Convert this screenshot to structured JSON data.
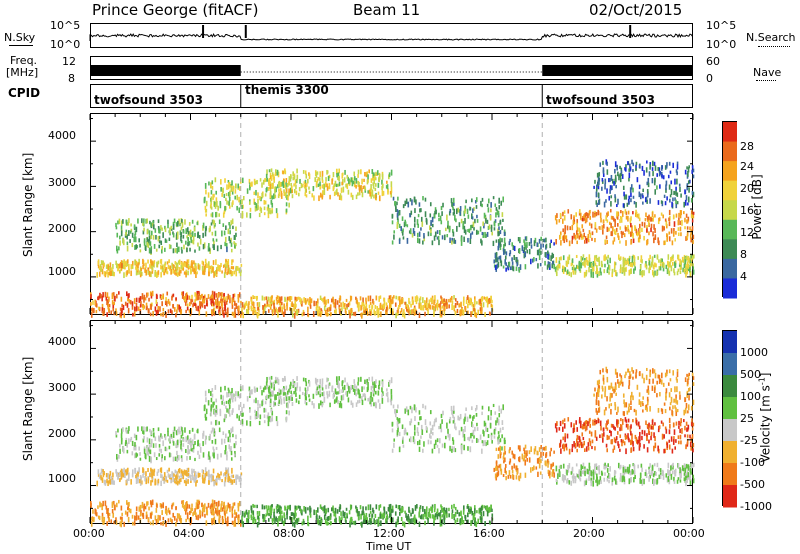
{
  "header": {
    "station": "Prince George (fitACF)",
    "beam": "Beam 11",
    "date": "02/Oct/2015"
  },
  "strips": {
    "nsky_label": "N.Sky",
    "nsky_ticks": [
      "10^5",
      "10^0"
    ],
    "nsearch_label": "N.Search",
    "nsearch_ticks": [
      "10^5",
      "10^0"
    ],
    "freq_label_1": "Freq.",
    "freq_label_2": "[MHz]",
    "freq_ticks": [
      "12",
      "8"
    ],
    "nave_label": "Nave",
    "nave_ticks": [
      "60",
      "0"
    ],
    "cpid_label": "CPID",
    "cpid_segments": [
      {
        "name": "twofsound 3503",
        "start_hour": 0
      },
      {
        "name": "themis 3300",
        "start_hour": 6
      },
      {
        "name": "twofsound 3503",
        "start_hour": 18
      }
    ]
  },
  "panels": {
    "ylabel": "Slant Range [km]",
    "yticks": [
      "4000",
      "3000",
      "2000",
      "1000"
    ],
    "xlabel": "Time UT",
    "xticks": [
      "00:00",
      "04:00",
      "08:00",
      "12:00",
      "16:00",
      "20:00",
      "00:00"
    ],
    "power_label": "Power [dB]",
    "power_ticks": [
      "28",
      "24",
      "20",
      "16",
      "12",
      "8",
      "4"
    ],
    "velocity_label": "Velocity [m s",
    "velocity_label_sup": "-1",
    "velocity_label_end": "]",
    "velocity_ticks": [
      "1000",
      "500",
      "100",
      "25",
      "-25",
      "-100",
      "-500",
      "-1000"
    ]
  },
  "colors": {
    "power_scale": [
      "#1a2cd8",
      "#3a68a0",
      "#3d8a55",
      "#58b858",
      "#c6d84a",
      "#f0d23a",
      "#f5a31e",
      "#ea6a1c",
      "#df2a15"
    ],
    "velocity_scale": [
      "#1532b0",
      "#3a6ea8",
      "#3b8a3e",
      "#60c040",
      "#c8c8c8",
      "#f0b030",
      "#f07a1a",
      "#e02818"
    ]
  },
  "chart_data": {
    "type": "heatmap",
    "x_range_hours": [
      0,
      24
    ],
    "y_range_km": [
      180,
      4600
    ],
    "mode_changes_hours": [
      6,
      18
    ],
    "power_range_db": [
      0,
      32
    ],
    "velocity_range_ms": [
      -1250,
      1250
    ],
    "scatter_bands": [
      {
        "t0": 0.0,
        "t1": 6.0,
        "r0": 200,
        "r1": 700,
        "power_db": 26,
        "velocity": -100
      },
      {
        "t0": 0.2,
        "t1": 6.0,
        "r0": 1100,
        "r1": 1400,
        "power_db": 20,
        "velocity": -25
      },
      {
        "t0": 1.0,
        "t1": 5.8,
        "r0": 1600,
        "r1": 2300,
        "power_db": 12,
        "velocity": 25
      },
      {
        "t0": 4.5,
        "t1": 8.0,
        "r0": 2400,
        "r1": 3200,
        "power_db": 16,
        "velocity": 25
      },
      {
        "t0": 7.0,
        "t1": 12.0,
        "r0": 2800,
        "r1": 3400,
        "power_db": 18,
        "velocity": 25
      },
      {
        "t0": 6.0,
        "t1": 16.0,
        "r0": 200,
        "r1": 600,
        "power_db": 22,
        "velocity": 100
      },
      {
        "t0": 12.0,
        "t1": 16.5,
        "r0": 1800,
        "r1": 2800,
        "power_db": 10,
        "velocity": 25
      },
      {
        "t0": 16.0,
        "t1": 18.5,
        "r0": 1200,
        "r1": 1900,
        "power_db": 8,
        "velocity": -100
      },
      {
        "t0": 18.5,
        "t1": 24.0,
        "r0": 1100,
        "r1": 1500,
        "power_db": 16,
        "velocity": 25
      },
      {
        "t0": 18.5,
        "t1": 24.0,
        "r0": 1800,
        "r1": 2500,
        "power_db": 24,
        "velocity": -500
      },
      {
        "t0": 20.0,
        "t1": 24.0,
        "r0": 2600,
        "r1": 3600,
        "power_db": 6,
        "velocity": -100
      }
    ]
  }
}
